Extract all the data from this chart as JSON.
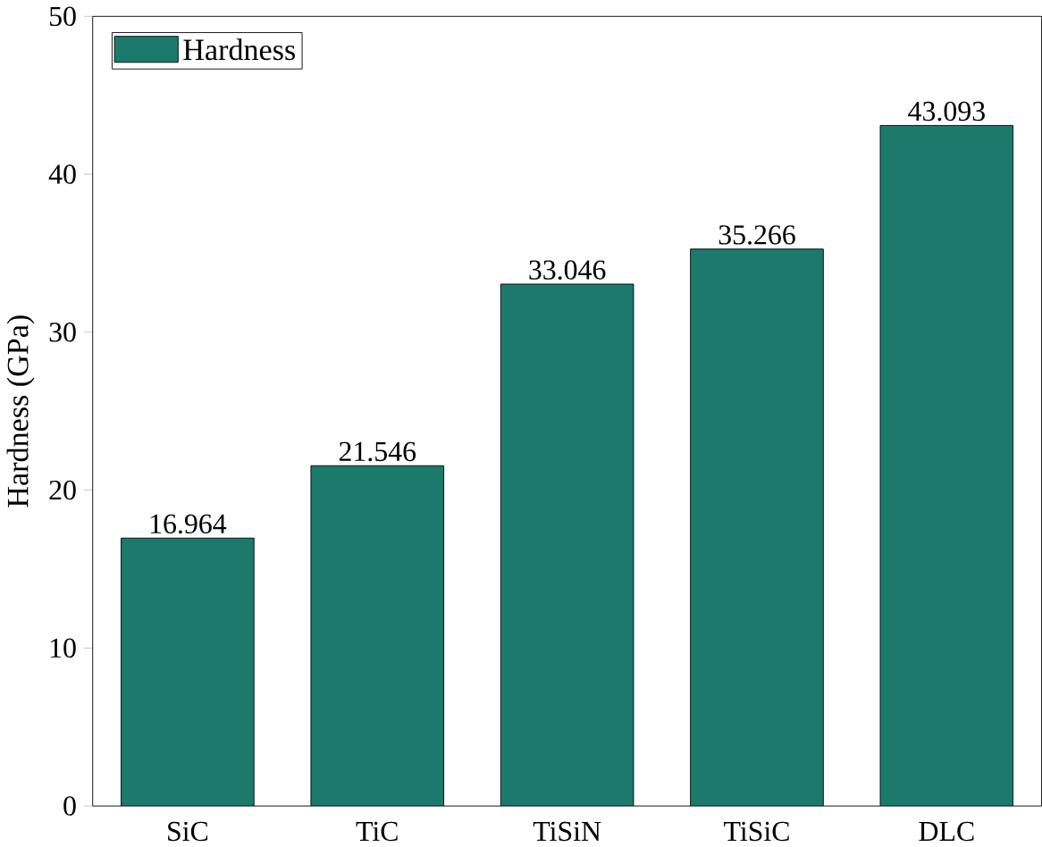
{
  "chart_data": {
    "type": "bar",
    "ylabel": "Hardness (GPa)",
    "categories": [
      "SiC",
      "TiC",
      "TiSiN",
      "TiSiC",
      "DLC"
    ],
    "series": [
      {
        "name": "Hardness",
        "color": "#1c7a6c",
        "values": [
          16.964,
          21.546,
          33.046,
          35.266,
          43.093
        ]
      }
    ],
    "ylim": [
      0,
      50
    ],
    "yticks": [
      0,
      10,
      20,
      30,
      40,
      50
    ],
    "data_labels": true,
    "legend": "top left",
    "grid": false
  }
}
